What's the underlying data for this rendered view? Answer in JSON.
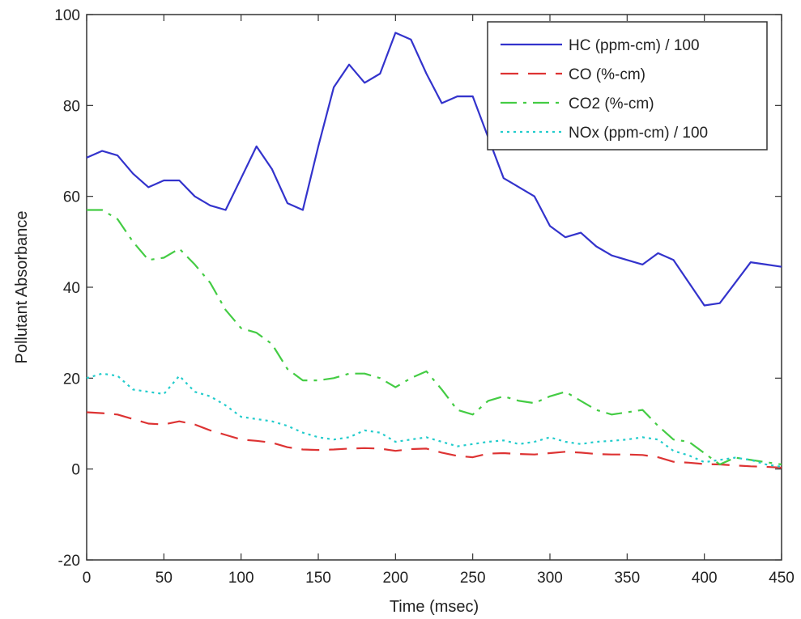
{
  "chart_data": {
    "type": "line",
    "title": "",
    "xlabel": "Time (msec)",
    "ylabel": "Pollutant Absorbance",
    "xlim": [
      0,
      450
    ],
    "ylim": [
      -20,
      100
    ],
    "xticks": [
      "0",
      "50",
      "100",
      "150",
      "200",
      "250",
      "300",
      "350",
      "400",
      "450"
    ],
    "yticks": [
      "-20",
      "0",
      "20",
      "40",
      "60",
      "80",
      "100"
    ],
    "grid": false,
    "legend_position": "top-right",
    "series": [
      {
        "name": "HC (ppm-cm) / 100",
        "color": "#3333cc",
        "style": "solid",
        "x": [
          0,
          10,
          20,
          30,
          40,
          50,
          60,
          70,
          80,
          90,
          100,
          110,
          120,
          130,
          140,
          150,
          160,
          170,
          180,
          190,
          200,
          210,
          220,
          230,
          240,
          250,
          260,
          270,
          280,
          290,
          300,
          310,
          320,
          330,
          340,
          350,
          360,
          370,
          380,
          390,
          400,
          410,
          420,
          430,
          440,
          450
        ],
        "y": [
          68.5,
          70,
          69,
          65,
          62,
          63.5,
          63.5,
          60,
          58,
          57,
          64,
          71,
          66,
          58.5,
          57,
          71,
          84,
          89,
          85,
          87,
          96,
          94.5,
          87,
          80.5,
          82,
          82,
          73,
          64,
          62,
          60,
          53.5,
          51,
          52,
          49,
          47,
          46,
          45,
          47.5,
          46,
          41,
          36,
          36.5,
          41,
          45.5,
          45,
          44.5
        ]
      },
      {
        "name": "CO (%-cm)",
        "color": "#dd3333",
        "style": "dashed",
        "x": [
          0,
          10,
          20,
          30,
          40,
          50,
          60,
          70,
          80,
          90,
          100,
          110,
          120,
          130,
          140,
          150,
          160,
          170,
          180,
          190,
          200,
          210,
          220,
          230,
          240,
          250,
          260,
          270,
          280,
          290,
          300,
          310,
          320,
          330,
          340,
          350,
          360,
          370,
          380,
          390,
          400,
          410,
          420,
          430,
          440,
          450
        ],
        "y": [
          12.5,
          12.3,
          12,
          11,
          10,
          9.8,
          10.5,
          9.8,
          8.5,
          7.5,
          6.5,
          6.2,
          5.8,
          4.8,
          4.3,
          4.2,
          4.3,
          4.5,
          4.6,
          4.5,
          4,
          4.4,
          4.5,
          3.6,
          2.9,
          2.6,
          3.4,
          3.5,
          3.3,
          3.2,
          3.5,
          3.8,
          3.6,
          3.3,
          3.2,
          3.2,
          3.1,
          2.6,
          1.6,
          1.4,
          1.1,
          1,
          0.8,
          0.6,
          0.5,
          0.3
        ]
      },
      {
        "name": "CO2 (%-cm)",
        "color": "#44cc44",
        "style": "dashdot",
        "x": [
          0,
          10,
          20,
          30,
          40,
          50,
          60,
          70,
          80,
          90,
          100,
          110,
          120,
          130,
          140,
          150,
          160,
          170,
          180,
          190,
          200,
          210,
          220,
          230,
          240,
          250,
          260,
          270,
          280,
          290,
          300,
          310,
          320,
          330,
          340,
          350,
          360,
          370,
          380,
          390,
          400,
          410,
          420,
          430,
          440,
          450
        ],
        "y": [
          57,
          57,
          55,
          50,
          46,
          46.5,
          48.5,
          45,
          41,
          35,
          31,
          30,
          27.5,
          22,
          19.5,
          19.5,
          20,
          21,
          21,
          20,
          18,
          20,
          21.5,
          17.5,
          13,
          12,
          15,
          16,
          15,
          14.5,
          16,
          17,
          15,
          13,
          12,
          12.5,
          13,
          9.5,
          6.5,
          6,
          3.5,
          1,
          2.5,
          2,
          1.5,
          1
        ]
      },
      {
        "name": "NOx (ppm-cm) / 100",
        "color": "#22cccc",
        "style": "dotted",
        "x": [
          0,
          10,
          20,
          30,
          40,
          50,
          60,
          70,
          80,
          90,
          100,
          110,
          120,
          130,
          140,
          150,
          160,
          170,
          180,
          190,
          200,
          210,
          220,
          230,
          240,
          250,
          260,
          270,
          280,
          290,
          300,
          310,
          320,
          330,
          340,
          350,
          360,
          370,
          380,
          390,
          400,
          410,
          420,
          430,
          440,
          450
        ],
        "y": [
          20,
          21,
          20.5,
          17.5,
          17,
          16.5,
          20.5,
          17,
          16,
          14,
          11.5,
          11,
          10.5,
          9.5,
          8,
          7,
          6.5,
          7,
          8.5,
          8,
          6,
          6.5,
          7,
          6,
          5,
          5.5,
          6,
          6.3,
          5.5,
          6,
          7,
          6,
          5.5,
          6,
          6.2,
          6.5,
          7,
          6.5,
          4,
          3,
          1.5,
          2,
          2.5,
          2,
          1,
          0.5
        ]
      }
    ]
  }
}
